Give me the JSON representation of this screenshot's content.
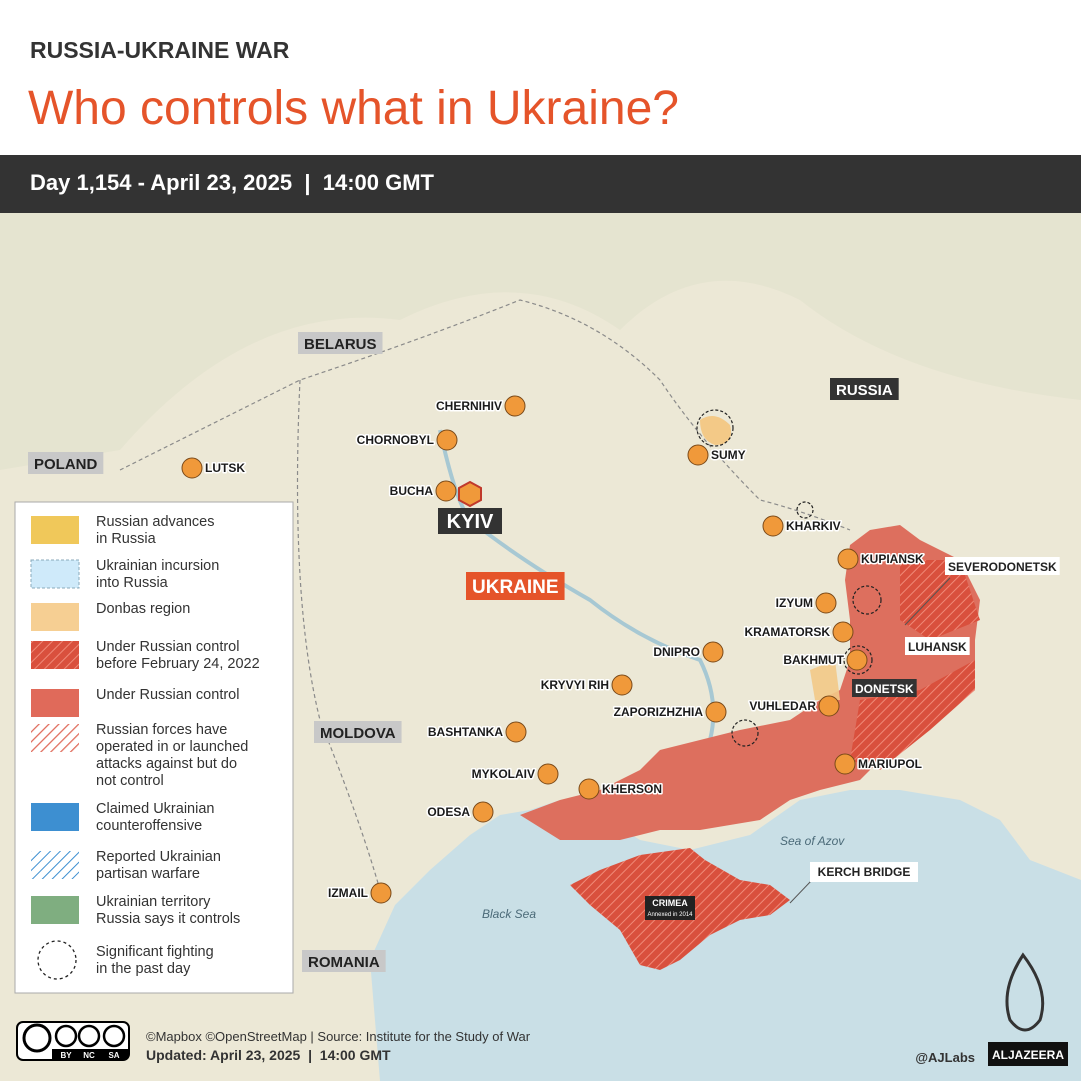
{
  "header": {
    "kicker": "RUSSIA-UKRAINE WAR",
    "title": "Who controls what in Ukraine?",
    "date_bar": "Day 1,154 - April 23, 2025  |  14:00 GMT"
  },
  "map": {
    "countries": [
      "BELARUS",
      "RUSSIA",
      "POLAND",
      "UKRAINE",
      "MOLDOVA",
      "ROMANIA"
    ],
    "capital": "KYIV",
    "cities": [
      "CHERNIHIV",
      "CHORNOBYL",
      "LUTSK",
      "BUCHA",
      "SUMY",
      "KHARKIV",
      "KUPIANSK",
      "SEVERODONETSK",
      "IZYUM",
      "KRAMATORSK",
      "LUHANSK",
      "BAKHMUT",
      "DNIPRO",
      "KRYVYI RIH",
      "DONETSK",
      "VUHLEDAR",
      "ZAPORIZHZHIA",
      "BASHTANKA",
      "MARIUPOL",
      "MYKOLAIV",
      "KHERSON",
      "ODESA",
      "IZMAIL"
    ],
    "seas": [
      "Sea of Azov",
      "Black Sea"
    ],
    "crimea": {
      "label": "CRIMEA",
      "note": "Annexed in 2014"
    },
    "kerch_bridge": "KERCH BRIDGE"
  },
  "legend": {
    "items": [
      {
        "lines": [
          "Russian advances",
          "in Russia"
        ]
      },
      {
        "lines": [
          "Ukrainian incursion",
          "into Russia"
        ]
      },
      {
        "lines": [
          "Donbas region"
        ]
      },
      {
        "lines": [
          "Under Russian control",
          "before February 24, 2022"
        ]
      },
      {
        "lines": [
          "Under Russian control"
        ]
      },
      {
        "lines": [
          "Russian forces have",
          "operated in or launched",
          "attacks against but do",
          "not control"
        ]
      },
      {
        "lines": [
          "Claimed Ukrainian",
          "counteroffensive"
        ]
      },
      {
        "lines": [
          "Reported Ukrainian",
          "partisan warfare"
        ]
      },
      {
        "lines": [
          "Ukrainian territory",
          "Russia says it controls"
        ]
      },
      {
        "lines": [
          "Significant fighting",
          "in the past day"
        ]
      }
    ]
  },
  "footer": {
    "license": [
      "BY",
      "NC",
      "SA"
    ],
    "credits": "©Mapbox ©OpenStreetMap | Source: Institute for the Study of War",
    "updated": "Updated: April 23, 2025  |  14:00 GMT",
    "handle": "@AJLabs",
    "logo": "ALJAZEERA"
  }
}
